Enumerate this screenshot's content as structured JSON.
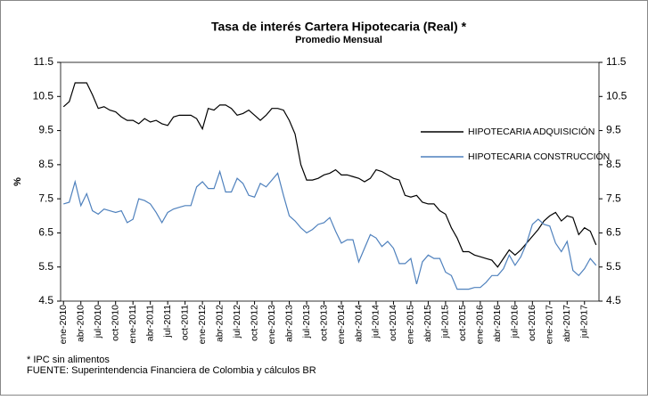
{
  "chart_data": {
    "type": "line",
    "title": "Tasa de interés Cartera Hipotecaria (Real) *",
    "subtitle": "Promedio Mensual",
    "ylabel": "%",
    "legend": "upper right",
    "ylim": [
      4.5,
      11.5
    ],
    "yticks": [
      4.5,
      5.5,
      6.5,
      7.5,
      8.5,
      9.5,
      10.5,
      11.5
    ],
    "y2lim": [
      4.5,
      11.5
    ],
    "y2ticks": [
      4.5,
      5.5,
      6.5,
      7.5,
      8.5,
      9.5,
      10.5,
      11.5
    ],
    "categories": [
      "ene-2010",
      null,
      null,
      "abr-2010",
      null,
      null,
      "jul-2010",
      null,
      null,
      "oct-2010",
      null,
      null,
      "ene-2011",
      null,
      null,
      "abr-2011",
      null,
      null,
      "jul-2011",
      null,
      null,
      "oct-2011",
      null,
      null,
      "ene-2012",
      null,
      null,
      "abr-2012",
      null,
      null,
      "jul-2012",
      null,
      null,
      "oct-2012",
      null,
      null,
      "ene-2013",
      null,
      null,
      "abr-2013",
      null,
      null,
      "jul-2013",
      null,
      null,
      "oct-2013",
      null,
      null,
      "ene-2014",
      null,
      null,
      "abr-2014",
      null,
      null,
      "jul-2014",
      null,
      null,
      "oct-2014",
      null,
      null,
      "ene-2015",
      null,
      null,
      "abr-2015",
      null,
      null,
      "jul-2015",
      null,
      null,
      "oct-2015",
      null,
      null,
      "ene-2016",
      null,
      null,
      "abr-2016",
      null,
      null,
      "jul-2016",
      null,
      null,
      "oct-2016",
      null,
      null,
      "ene-2017",
      null,
      null,
      "abr-2017",
      null,
      null,
      "jul-2017",
      null,
      null
    ],
    "series": [
      {
        "name": "HIPOTECARIA ADQUISICIÓN",
        "color": "#000000",
        "values": [
          10.2,
          10.35,
          10.9,
          10.9,
          10.9,
          10.55,
          10.15,
          10.2,
          10.1,
          10.05,
          9.9,
          9.8,
          9.8,
          9.7,
          9.85,
          9.75,
          9.8,
          9.7,
          9.65,
          9.9,
          9.95,
          9.95,
          9.95,
          9.85,
          9.55,
          10.15,
          10.1,
          10.25,
          10.25,
          10.15,
          9.95,
          10.0,
          10.1,
          9.95,
          9.8,
          9.95,
          10.15,
          10.15,
          10.1,
          9.8,
          9.4,
          8.5,
          8.05,
          8.05,
          8.1,
          8.2,
          8.25,
          8.35,
          8.2,
          8.2,
          8.15,
          8.1,
          8.0,
          8.1,
          8.35,
          8.3,
          8.2,
          8.1,
          8.05,
          7.6,
          7.55,
          7.6,
          7.4,
          7.35,
          7.35,
          7.15,
          7.05,
          6.65,
          6.35,
          5.95,
          5.95,
          5.85,
          5.8,
          5.75,
          5.7,
          5.5,
          5.75,
          6.0,
          5.85,
          6.0,
          6.2,
          6.4,
          6.6,
          6.85,
          7.0,
          7.1,
          6.85,
          7.0,
          6.95,
          6.45,
          6.65,
          6.55,
          6.15
        ]
      },
      {
        "name": "HIPOTECARIA CONSTRUCCIÓN",
        "color": "#4f81bd",
        "values": [
          7.35,
          7.4,
          8.0,
          7.3,
          7.65,
          7.15,
          7.05,
          7.2,
          7.15,
          7.1,
          7.15,
          6.8,
          6.9,
          7.5,
          7.45,
          7.35,
          7.1,
          6.8,
          7.1,
          7.2,
          7.25,
          7.3,
          7.3,
          7.85,
          8.0,
          7.8,
          7.8,
          8.3,
          7.7,
          7.7,
          8.1,
          7.95,
          7.6,
          7.55,
          7.95,
          7.85,
          8.05,
          8.25,
          7.6,
          7.0,
          6.85,
          6.65,
          6.5,
          6.6,
          6.75,
          6.8,
          6.95,
          6.55,
          6.2,
          6.3,
          6.3,
          5.65,
          6.05,
          6.45,
          6.35,
          6.1,
          6.25,
          6.05,
          5.6,
          5.6,
          5.75,
          5.0,
          5.65,
          5.85,
          5.75,
          5.75,
          5.35,
          5.25,
          4.85,
          4.85,
          4.85,
          4.9,
          4.9,
          5.05,
          5.25,
          5.25,
          5.45,
          5.85,
          5.55,
          5.8,
          6.2,
          6.75,
          6.9,
          6.75,
          6.7,
          6.2,
          5.95,
          6.25,
          5.4,
          5.25,
          5.45,
          5.75,
          5.55
        ]
      }
    ],
    "notes": [
      "* IPC  sin alimentos",
      "FUENTE:  Superintendencia Financiera de Colombia  y  cálculos BR"
    ]
  }
}
